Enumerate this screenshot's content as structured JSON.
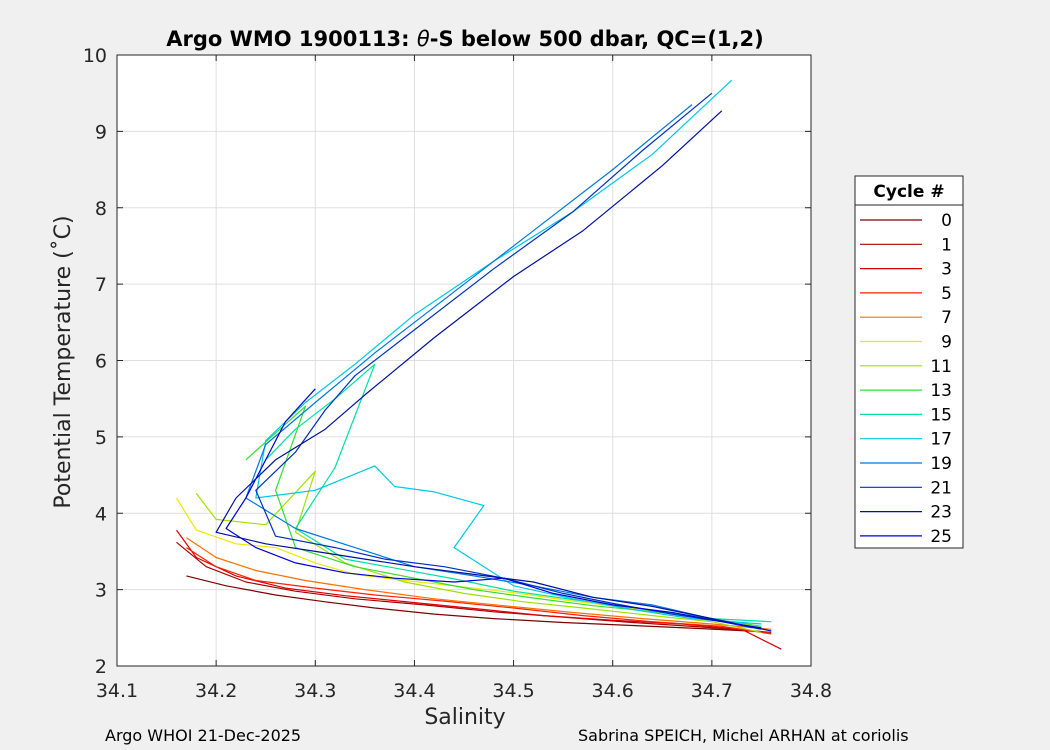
{
  "chart_data": {
    "type": "line",
    "title_prefix": "Argo WMO 1900113: ",
    "title_symbol": "θ",
    "title_suffix": "-S below 500 dbar,  QC=(1,2)",
    "xlabel": "Salinity",
    "ylabel": "Potential Temperature (˚C)",
    "xlim": [
      34.1,
      34.8
    ],
    "ylim": [
      2,
      10
    ],
    "xticks": [
      34.1,
      34.2,
      34.3,
      34.4,
      34.5,
      34.6,
      34.7,
      34.8
    ],
    "xtick_labels": [
      "34.1",
      "34.2",
      "34.3",
      "34.4",
      "34.5",
      "34.6",
      "34.7",
      "34.8"
    ],
    "yticks": [
      2,
      3,
      4,
      5,
      6,
      7,
      8,
      9,
      10
    ],
    "ytick_labels": [
      "2",
      "3",
      "4",
      "5",
      "6",
      "7",
      "8",
      "9",
      "10"
    ],
    "grid": true,
    "legend_title": "Cycle #",
    "legend_position": "right-outside",
    "series": [
      {
        "name": "0",
        "color": "#800000",
        "x": [
          34.17,
          34.21,
          34.26,
          34.31,
          34.36,
          34.42,
          34.48,
          34.55,
          34.62,
          34.69,
          34.75
        ],
        "y": [
          3.18,
          3.05,
          2.93,
          2.84,
          2.76,
          2.68,
          2.62,
          2.57,
          2.53,
          2.49,
          2.45
        ]
      },
      {
        "name": "1",
        "color": "#aa0000",
        "x": [
          34.16,
          34.19,
          34.23,
          34.28,
          34.34,
          34.41,
          34.48,
          34.55,
          34.62,
          34.69,
          34.76
        ],
        "y": [
          3.62,
          3.3,
          3.1,
          2.98,
          2.88,
          2.8,
          2.71,
          2.64,
          2.57,
          2.51,
          2.44
        ]
      },
      {
        "name": "3",
        "color": "#dd0000",
        "x": [
          34.16,
          34.18,
          34.22,
          34.27,
          34.33,
          34.4,
          34.47,
          34.53,
          34.6,
          34.67,
          34.73,
          34.77
        ],
        "y": [
          3.78,
          3.42,
          3.18,
          3.02,
          2.92,
          2.83,
          2.74,
          2.66,
          2.6,
          2.55,
          2.48,
          2.22
        ]
      },
      {
        "name": "5",
        "color": "#ff2000",
        "x": [
          34.17,
          34.2,
          34.24,
          34.3,
          34.36,
          34.43,
          34.5,
          34.57,
          34.64,
          34.71,
          34.76
        ],
        "y": [
          3.55,
          3.3,
          3.12,
          3.02,
          2.93,
          2.85,
          2.76,
          2.66,
          2.58,
          2.52,
          2.42
        ]
      },
      {
        "name": "7",
        "color": "#ff7000",
        "x": [
          34.17,
          34.2,
          34.24,
          34.29,
          34.35,
          34.42,
          34.49,
          34.56,
          34.63,
          34.7,
          34.76
        ],
        "y": [
          3.68,
          3.42,
          3.25,
          3.12,
          3.0,
          2.88,
          2.79,
          2.7,
          2.62,
          2.55,
          2.48
        ]
      },
      {
        "name": "9",
        "color": "#f0e800",
        "x": [
          34.16,
          34.18,
          34.22,
          34.26,
          34.3,
          34.34,
          34.39,
          34.44,
          34.5,
          34.56,
          34.63,
          34.7,
          34.75
        ],
        "y": [
          4.2,
          3.78,
          3.6,
          3.55,
          3.35,
          3.2,
          3.12,
          3.05,
          2.96,
          2.85,
          2.74,
          2.62,
          2.5
        ]
      },
      {
        "name": "11",
        "color": "#a0e000",
        "x": [
          34.18,
          34.2,
          34.25,
          34.3,
          34.28,
          34.33,
          34.39,
          34.45,
          34.51,
          34.57,
          34.64,
          34.7,
          34.75
        ],
        "y": [
          4.26,
          3.92,
          3.85,
          4.55,
          3.75,
          3.35,
          3.1,
          2.95,
          2.84,
          2.76,
          2.66,
          2.58,
          2.44
        ]
      },
      {
        "name": "13",
        "color": "#30e030",
        "x": [
          34.23,
          34.26,
          34.29,
          34.26,
          34.28,
          34.34,
          34.4,
          34.46,
          34.52,
          34.58,
          34.65,
          34.71,
          34.75
        ],
        "y": [
          4.7,
          5.05,
          5.4,
          4.3,
          3.55,
          3.3,
          3.15,
          3.0,
          2.89,
          2.79,
          2.7,
          2.6,
          2.52
        ]
      },
      {
        "name": "15",
        "color": "#00e0a0",
        "x": [
          34.25,
          34.28,
          34.32,
          34.36,
          34.32,
          34.28,
          34.33,
          34.39,
          34.44,
          34.5,
          34.56,
          34.63,
          34.7,
          34.76
        ],
        "y": [
          4.7,
          5.1,
          5.5,
          5.95,
          4.6,
          3.8,
          3.4,
          3.26,
          3.14,
          2.98,
          2.87,
          2.75,
          2.62,
          2.58
        ]
      },
      {
        "name": "17",
        "color": "#00c8e8",
        "x": [
          34.72,
          34.64,
          34.56,
          34.48,
          34.4,
          34.34,
          34.29,
          34.25,
          34.24,
          34.3,
          34.36,
          34.38,
          34.42,
          34.47,
          34.44,
          34.5,
          34.56,
          34.62,
          34.68,
          34.75
        ],
        "y": [
          9.67,
          8.7,
          7.95,
          7.3,
          6.6,
          5.95,
          5.45,
          4.95,
          4.2,
          4.3,
          4.62,
          4.35,
          4.28,
          4.1,
          3.55,
          3.05,
          2.88,
          2.74,
          2.62,
          2.55
        ]
      },
      {
        "name": "19",
        "color": "#0078e0",
        "x": [
          34.68,
          34.6,
          34.52,
          34.44,
          34.36,
          34.3,
          34.25,
          34.23,
          34.28,
          34.34,
          34.4,
          34.46,
          34.52,
          34.58,
          34.64,
          34.69,
          34.74
        ],
        "y": [
          9.35,
          8.5,
          7.7,
          6.9,
          6.1,
          5.45,
          4.9,
          4.2,
          3.8,
          3.55,
          3.3,
          3.18,
          3.05,
          2.9,
          2.8,
          2.65,
          2.5
        ]
      },
      {
        "name": "21",
        "color": "#0030c0",
        "x": [
          34.7,
          34.63,
          34.56,
          34.48,
          34.4,
          34.34,
          34.31,
          34.28,
          34.24,
          34.26,
          34.32,
          34.37,
          34.43,
          34.49,
          34.55,
          34.6,
          34.66,
          34.71,
          34.75
        ],
        "y": [
          9.5,
          8.75,
          7.95,
          7.2,
          6.4,
          5.8,
          5.35,
          4.8,
          4.3,
          3.7,
          3.55,
          3.4,
          3.3,
          3.15,
          2.95,
          2.82,
          2.68,
          2.58,
          2.48
        ]
      },
      {
        "name": "23",
        "color": "#0010a0",
        "x": [
          34.71,
          34.65,
          34.57,
          34.5,
          34.42,
          34.35,
          34.31,
          34.26,
          34.22,
          34.2,
          34.25,
          34.3,
          34.35,
          34.4,
          34.46,
          34.52,
          34.58,
          34.64,
          34.7,
          34.76
        ],
        "y": [
          9.27,
          8.55,
          7.7,
          7.1,
          6.3,
          5.55,
          5.1,
          4.7,
          4.2,
          3.75,
          3.6,
          3.5,
          3.4,
          3.3,
          3.2,
          3.1,
          2.9,
          2.78,
          2.62,
          2.46
        ]
      },
      {
        "name": "25",
        "color": "#0000d8",
        "x": [
          34.3,
          34.27,
          34.25,
          34.23,
          34.21,
          34.24,
          34.28,
          34.33,
          34.38,
          34.44,
          34.49,
          34.54,
          34.6,
          34.66,
          34.71,
          34.75
        ],
        "y": [
          5.63,
          5.2,
          4.7,
          4.2,
          3.8,
          3.55,
          3.35,
          3.22,
          3.15,
          3.1,
          3.15,
          2.95,
          2.8,
          2.7,
          2.58,
          2.5
        ]
      }
    ]
  },
  "footer": {
    "left": "Argo WHOI 21-Dec-2025",
    "right": "Sabrina SPEICH, Michel ARHAN at coriolis"
  }
}
